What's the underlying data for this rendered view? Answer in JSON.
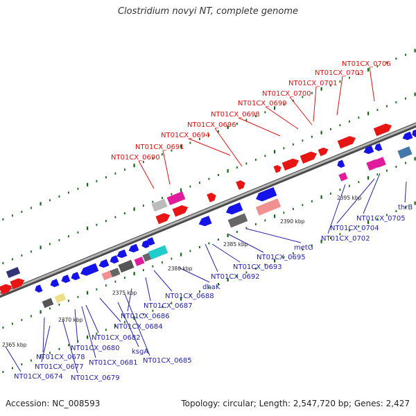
{
  "title": "Clostridium novyi NT, complete genome",
  "footer": {
    "accession": "Accession: NC_008593",
    "summary": "Topology: circular; Length: 2,547,720 bp; Genes: 2,427"
  },
  "colors": {
    "top_labels": "#dd1111",
    "bottom_labels": "#2222aa",
    "backbone": "#888888",
    "ticks": "#116611"
  },
  "kbp_ticks": [
    "2365 kbp",
    "2370 kbp",
    "2375 kbp",
    "2380 kbp",
    "2385 kbp",
    "2390 kbp",
    "2395 kbp"
  ],
  "top_genes": [
    "NT01CX_0690",
    "NT01CX_0691",
    "NT01CX_0694",
    "NT01CX_0696",
    "NT01CX_0698",
    "NT01CX_0699",
    "NT01CX_0700",
    "NT01CX_0701",
    "NT01CX_0703",
    "NT01CX_0706"
  ],
  "bottom_genes": [
    "NT01CX_0674",
    "NT01CX_0677",
    "NT01CX_0678",
    "NT01CX_0679",
    "NT01CX_0680",
    "NT01CX_0681",
    "NT01CX_0682",
    "ksgA",
    "NT01CX_0684",
    "NT01CX_0685",
    "NT01CX_0686",
    "NT01CX_0687",
    "NT01CX_0688",
    "dhaK",
    "NT01CX_0692",
    "NT01CX_0693",
    "NT01CX_0695",
    "metG",
    "NT01CX_0702",
    "NT01CX_0704",
    "NT01CX_0705",
    "thrB"
  ]
}
